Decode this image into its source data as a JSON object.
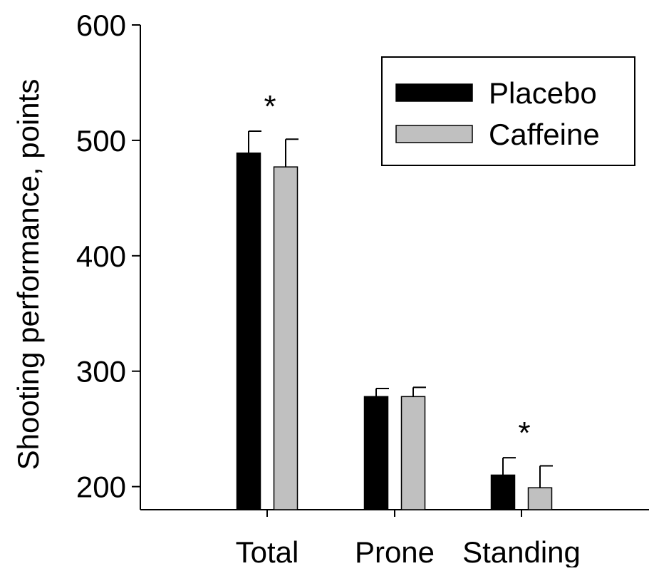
{
  "chart_data": {
    "type": "bar",
    "categories": [
      "Total",
      "Prone",
      "Standing"
    ],
    "ylabel": "Shooting performance, points",
    "xlabel": "",
    "ylim": [
      180,
      600
    ],
    "yticks": [
      200,
      300,
      400,
      500,
      600
    ],
    "grid": false,
    "legend_position": "top-right",
    "series": [
      {
        "name": "Placebo",
        "color": "#000000",
        "values": [
          489,
          278,
          210
        ],
        "errors": [
          19,
          7,
          15
        ]
      },
      {
        "name": "Caffeine",
        "color": "#c0c0c0",
        "values": [
          477,
          278,
          199
        ],
        "errors": [
          24,
          8,
          19
        ]
      }
    ],
    "annotations": [
      {
        "category": "Total",
        "text": "*"
      },
      {
        "category": "Standing",
        "text": "*"
      }
    ]
  }
}
